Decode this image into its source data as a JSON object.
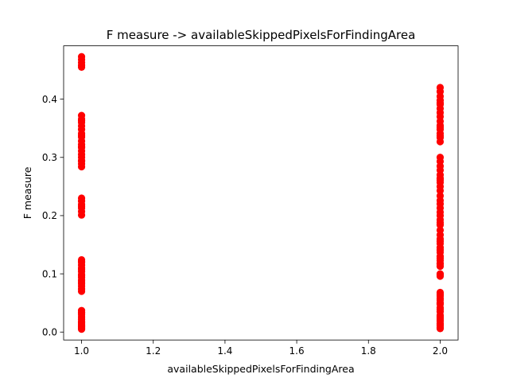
{
  "chart_data": {
    "type": "scatter",
    "title": "F measure -> availableSkippedPixelsForFindingArea",
    "xlabel": "availableSkippedPixelsForFindingArea",
    "ylabel": "F measure",
    "xlim": [
      0.95,
      2.05
    ],
    "ylim": [
      -0.0136,
      0.4916
    ],
    "x_ticks": [
      1.0,
      1.2,
      1.4,
      1.6,
      1.8,
      2.0
    ],
    "x_tick_labels": [
      "1.0",
      "1.2",
      "1.4",
      "1.6",
      "1.8",
      "2.0"
    ],
    "y_ticks": [
      0.0,
      0.1,
      0.2,
      0.3,
      0.4
    ],
    "y_tick_labels": [
      "0.0",
      "0.1",
      "0.2",
      "0.3",
      "0.4"
    ],
    "grid": false,
    "legend": "none",
    "marker_color": "#ff0000",
    "series": [
      {
        "x": [
          1,
          1,
          1,
          1,
          1,
          1,
          1,
          1,
          1,
          1,
          1,
          1,
          1,
          1,
          1,
          1,
          1,
          1,
          1,
          1,
          1,
          1,
          1,
          1,
          1,
          1,
          1,
          1,
          1,
          1,
          1,
          1,
          1,
          1,
          1,
          1,
          1,
          1,
          1,
          1,
          1,
          1,
          1,
          1,
          1,
          1,
          1,
          1,
          1,
          1,
          1,
          1,
          1,
          1,
          1,
          1,
          1,
          1,
          1,
          1,
          1,
          1,
          1
        ],
        "y": [
          0.473,
          0.468,
          0.463,
          0.458,
          0.455,
          0.372,
          0.366,
          0.36,
          0.354,
          0.348,
          0.341,
          0.335,
          0.328,
          0.322,
          0.317,
          0.311,
          0.305,
          0.3,
          0.294,
          0.289,
          0.284,
          0.23,
          0.225,
          0.219,
          0.213,
          0.207,
          0.201,
          0.124,
          0.12,
          0.115,
          0.11,
          0.104,
          0.099,
          0.094,
          0.089,
          0.083,
          0.079,
          0.074,
          0.07,
          0.037,
          0.034,
          0.03,
          0.026,
          0.022,
          0.018,
          0.014,
          0.011,
          0.008,
          0.006,
          0.016,
          0.012,
          0.009,
          0.033,
          0.086,
          0.108,
          0.121,
          0.318,
          0.338,
          0.216,
          0.363,
          0.294,
          0.097,
          0.005
        ]
      },
      {
        "x": [
          2,
          2,
          2,
          2,
          2,
          2,
          2,
          2,
          2,
          2,
          2,
          2,
          2,
          2,
          2,
          2,
          2,
          2,
          2,
          2,
          2,
          2,
          2,
          2,
          2,
          2,
          2,
          2,
          2,
          2,
          2,
          2,
          2,
          2,
          2,
          2,
          2,
          2,
          2,
          2,
          2,
          2,
          2,
          2,
          2,
          2,
          2,
          2,
          2,
          2,
          2,
          2,
          2,
          2,
          2,
          2,
          2,
          2,
          2,
          2,
          2,
          2,
          2,
          2,
          2,
          2,
          2,
          2,
          2,
          2,
          2,
          2,
          2
        ],
        "y": [
          0.42,
          0.413,
          0.405,
          0.398,
          0.391,
          0.384,
          0.377,
          0.37,
          0.362,
          0.355,
          0.348,
          0.341,
          0.334,
          0.327,
          0.3,
          0.293,
          0.285,
          0.278,
          0.27,
          0.264,
          0.257,
          0.25,
          0.243,
          0.234,
          0.22,
          0.213,
          0.206,
          0.2,
          0.193,
          0.184,
          0.175,
          0.167,
          0.16,
          0.152,
          0.145,
          0.137,
          0.13,
          0.123,
          0.117,
          0.113,
          0.1,
          0.096,
          0.068,
          0.062,
          0.055,
          0.048,
          0.042,
          0.035,
          0.029,
          0.024,
          0.019,
          0.015,
          0.011,
          0.008,
          0.006,
          0.013,
          0.021,
          0.027,
          0.039,
          0.05,
          0.058,
          0.065,
          0.098,
          0.118,
          0.127,
          0.141,
          0.156,
          0.188,
          0.226,
          0.261,
          0.337,
          0.352,
          0.393
        ]
      }
    ]
  }
}
